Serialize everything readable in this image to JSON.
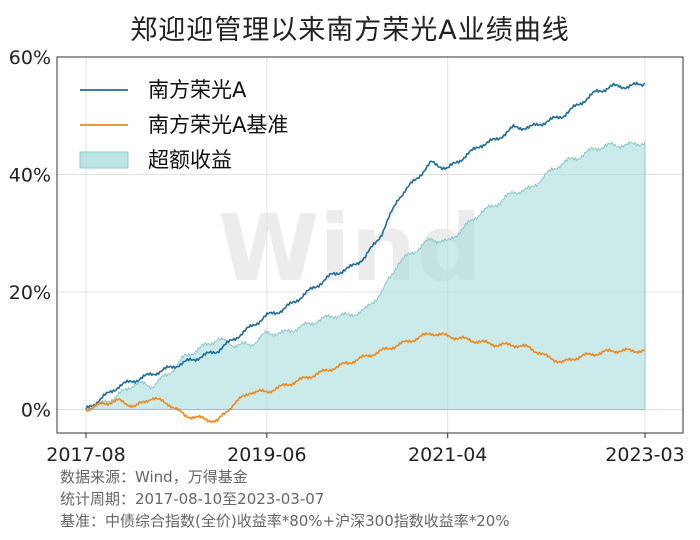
{
  "title": "郑迎迎管理以来南方荣光A业绩曲线",
  "watermark": "Wind",
  "footer": {
    "source": "数据来源：Wind，万得基金",
    "period": "统计周期：2017-08-10至2023-03-07",
    "benchmark": "基准：中债综合指数(全价)收益率*80%+沪深300指数收益率*20%"
  },
  "colors": {
    "fund": "#1f6e9c",
    "benchmark": "#f0891e",
    "excess_fill": "#a8dcdc",
    "excess_edge": "#8cc8c8"
  },
  "chart_data": {
    "type": "line",
    "title": "郑迎迎管理以来南方荣光A业绩曲线",
    "xlabel": "",
    "ylabel": "",
    "x_ticks": [
      "2017-08",
      "2019-06",
      "2021-04",
      "2023-03"
    ],
    "y_ticks": [
      "0%",
      "20%",
      "40%",
      "60%"
    ],
    "ylim": [
      -4,
      60
    ],
    "grid": true,
    "legend_position": "top-left",
    "x": [
      "2017-08",
      "2017-10",
      "2017-12",
      "2018-02",
      "2018-04",
      "2018-06",
      "2018-08",
      "2018-10",
      "2018-12",
      "2019-02",
      "2019-04",
      "2019-06",
      "2019-08",
      "2019-10",
      "2019-12",
      "2020-02",
      "2020-04",
      "2020-06",
      "2020-08",
      "2020-10",
      "2020-12",
      "2021-02",
      "2021-04",
      "2021-06",
      "2021-08",
      "2021-10",
      "2021-12",
      "2022-02",
      "2022-04",
      "2022-06",
      "2022-08",
      "2022-10",
      "2022-12",
      "2023-02",
      "2023-03"
    ],
    "series": [
      {
        "name": "南方荣光A",
        "kind": "line",
        "values": [
          0,
          2,
          4,
          5,
          6,
          7,
          8,
          9,
          10,
          12,
          14,
          16,
          17,
          19,
          21,
          23,
          24,
          26,
          30,
          36,
          39,
          42,
          41,
          43,
          45,
          46,
          48,
          48,
          49,
          50,
          52,
          54,
          55,
          55,
          55.5
        ]
      },
      {
        "name": "南方荣光A基准",
        "kind": "line",
        "values": [
          0,
          1,
          1.5,
          0.5,
          2,
          1,
          -1,
          -1.5,
          -2,
          1,
          3,
          3,
          4,
          5,
          6,
          7,
          8,
          9,
          10,
          11,
          12,
          13,
          12.5,
          12,
          11.5,
          11,
          11,
          10.5,
          9,
          8,
          9,
          9.5,
          10,
          10,
          10
        ]
      },
      {
        "name": "超额收益",
        "kind": "area",
        "values": [
          0,
          1,
          2.5,
          4.5,
          4,
          6,
          9,
          10.5,
          12,
          11,
          11,
          13,
          13,
          14,
          15,
          16,
          16,
          17,
          20,
          25,
          27,
          29,
          28.5,
          31,
          33.5,
          35,
          37,
          37.5,
          40,
          42,
          43,
          44.5,
          45,
          45,
          45.5
        ]
      }
    ]
  }
}
